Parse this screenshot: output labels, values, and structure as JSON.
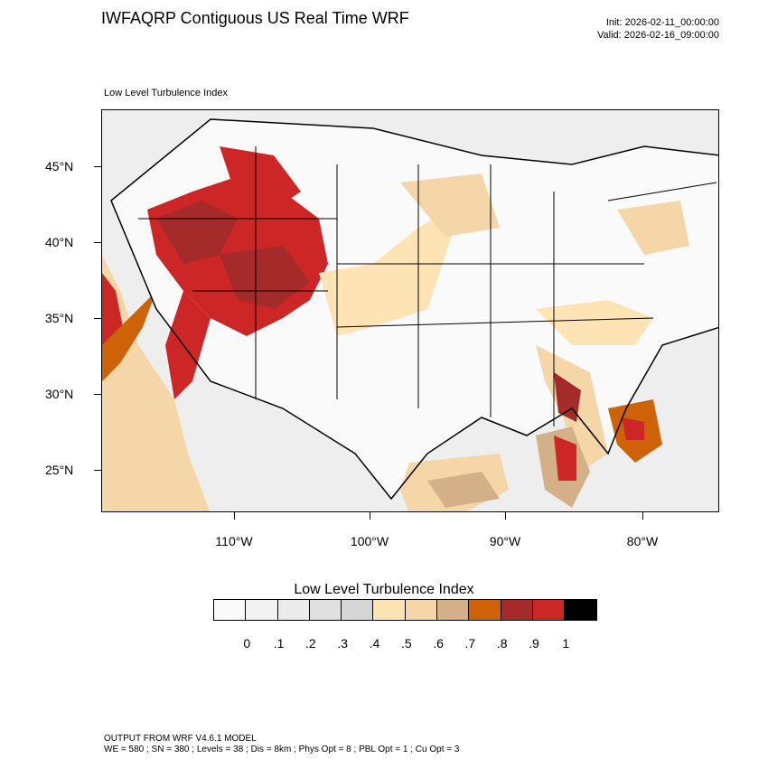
{
  "header": {
    "title": "IWFAQRP Contiguous US Real Time WRF",
    "init": "Init: 2026-02-11_00:00:00",
    "valid": "Valid: 2026-02-16_09:00:00"
  },
  "map": {
    "subtitle": "Low Level Turbulence Index",
    "lat_labels": [
      "45°N",
      "40°N",
      "35°N",
      "30°N",
      "25°N"
    ],
    "lon_labels": [
      "110°W",
      "100°W",
      "90°W",
      "80°W"
    ]
  },
  "colorbar": {
    "title": "Low Level Turbulence Index",
    "labels": [
      "0",
      ".1",
      ".2",
      ".3",
      ".4",
      ".5",
      ".6",
      ".7",
      ".8",
      ".9",
      "1"
    ],
    "colors": [
      "#fafafa",
      "#f2f2f2",
      "#ebebeb",
      "#e0e0e0",
      "#d6d6d6",
      "#fee3b5",
      "#f5d6a8",
      "#d4b088",
      "#cd6209",
      "#a52a2a",
      "#cd2626",
      "#000000"
    ]
  },
  "footer": {
    "line1": "OUTPUT FROM WRF V4.6.1 MODEL",
    "line2": "WE = 580 ; SN = 380 ; Levels = 38 ; Dis = 8km ; Phys Opt = 8 ; PBL Opt = 1 ; Cu Opt = 3"
  }
}
